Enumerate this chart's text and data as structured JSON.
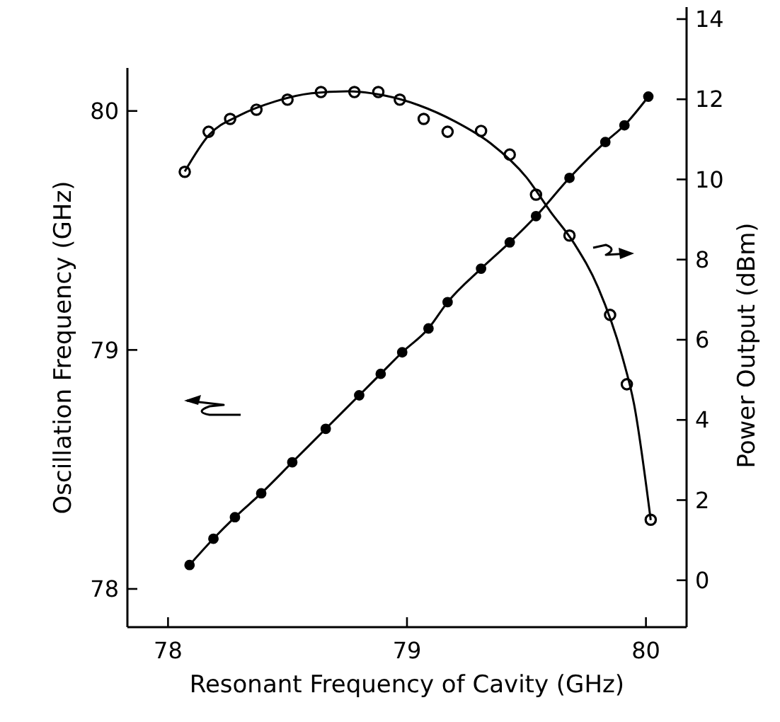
{
  "chart_data": {
    "type": "line",
    "xlabel": "Resonant Frequency of Cavity (GHz)",
    "ylabel": "Oscillation Frequency (GHz)",
    "y2label": "Power Output (dBm)",
    "xlim": [
      77.83,
      80.17
    ],
    "xticks": [
      78,
      79,
      80
    ],
    "ylim": [
      77.84,
      80.18
    ],
    "yticks": [
      78,
      79,
      80
    ],
    "y2lim": [
      -1.17,
      14.3
    ],
    "y2ticks": [
      0,
      2,
      4,
      6,
      8,
      10,
      12,
      14
    ],
    "grid": false,
    "series": [
      {
        "marker": "circle",
        "color": "#000000",
        "x": [
          78.09,
          78.19,
          78.28,
          78.39,
          78.52,
          78.66,
          78.8,
          78.89,
          78.98,
          79.09,
          79.17,
          79.31,
          79.43,
          79.54,
          79.68,
          79.83,
          79.91,
          80.01
        ],
        "values": [
          78.1,
          78.21,
          78.3,
          78.4,
          78.53,
          78.67,
          78.81,
          78.9,
          78.99,
          79.09,
          79.2,
          79.34,
          79.45,
          79.56,
          79.72,
          79.87,
          79.94,
          80.06
        ]
      },
      {
        "type": "scatter",
        "axis": "y2",
        "marker": "circle",
        "color": "#000000",
        "x": [
          78.07,
          78.17,
          78.26,
          78.37,
          78.5,
          78.64,
          78.78,
          78.88,
          78.97,
          79.07,
          79.17,
          79.31,
          79.43,
          79.54,
          79.68,
          79.85,
          79.92,
          80.02
        ],
        "values": [
          10.19,
          11.19,
          11.51,
          11.74,
          11.99,
          12.18,
          12.18,
          12.18,
          11.99,
          11.51,
          11.19,
          11.21,
          10.62,
          9.62,
          8.6,
          6.62,
          4.89,
          1.51
        ]
      },
      {
        "type": "line",
        "axis": "y2",
        "marker": "none",
        "color": "#000000",
        "x": [
          78.07,
          78.17,
          78.3,
          78.45,
          78.6,
          78.75,
          78.9,
          79.05,
          79.2,
          79.35,
          79.5,
          79.6,
          79.7,
          79.8,
          79.9,
          79.95,
          80.02
        ],
        "values": [
          10.2,
          11.1,
          11.6,
          11.95,
          12.15,
          12.2,
          12.1,
          11.85,
          11.45,
          10.9,
          10.05,
          9.2,
          8.4,
          7.3,
          5.6,
          4.4,
          1.5
        ]
      }
    ]
  }
}
